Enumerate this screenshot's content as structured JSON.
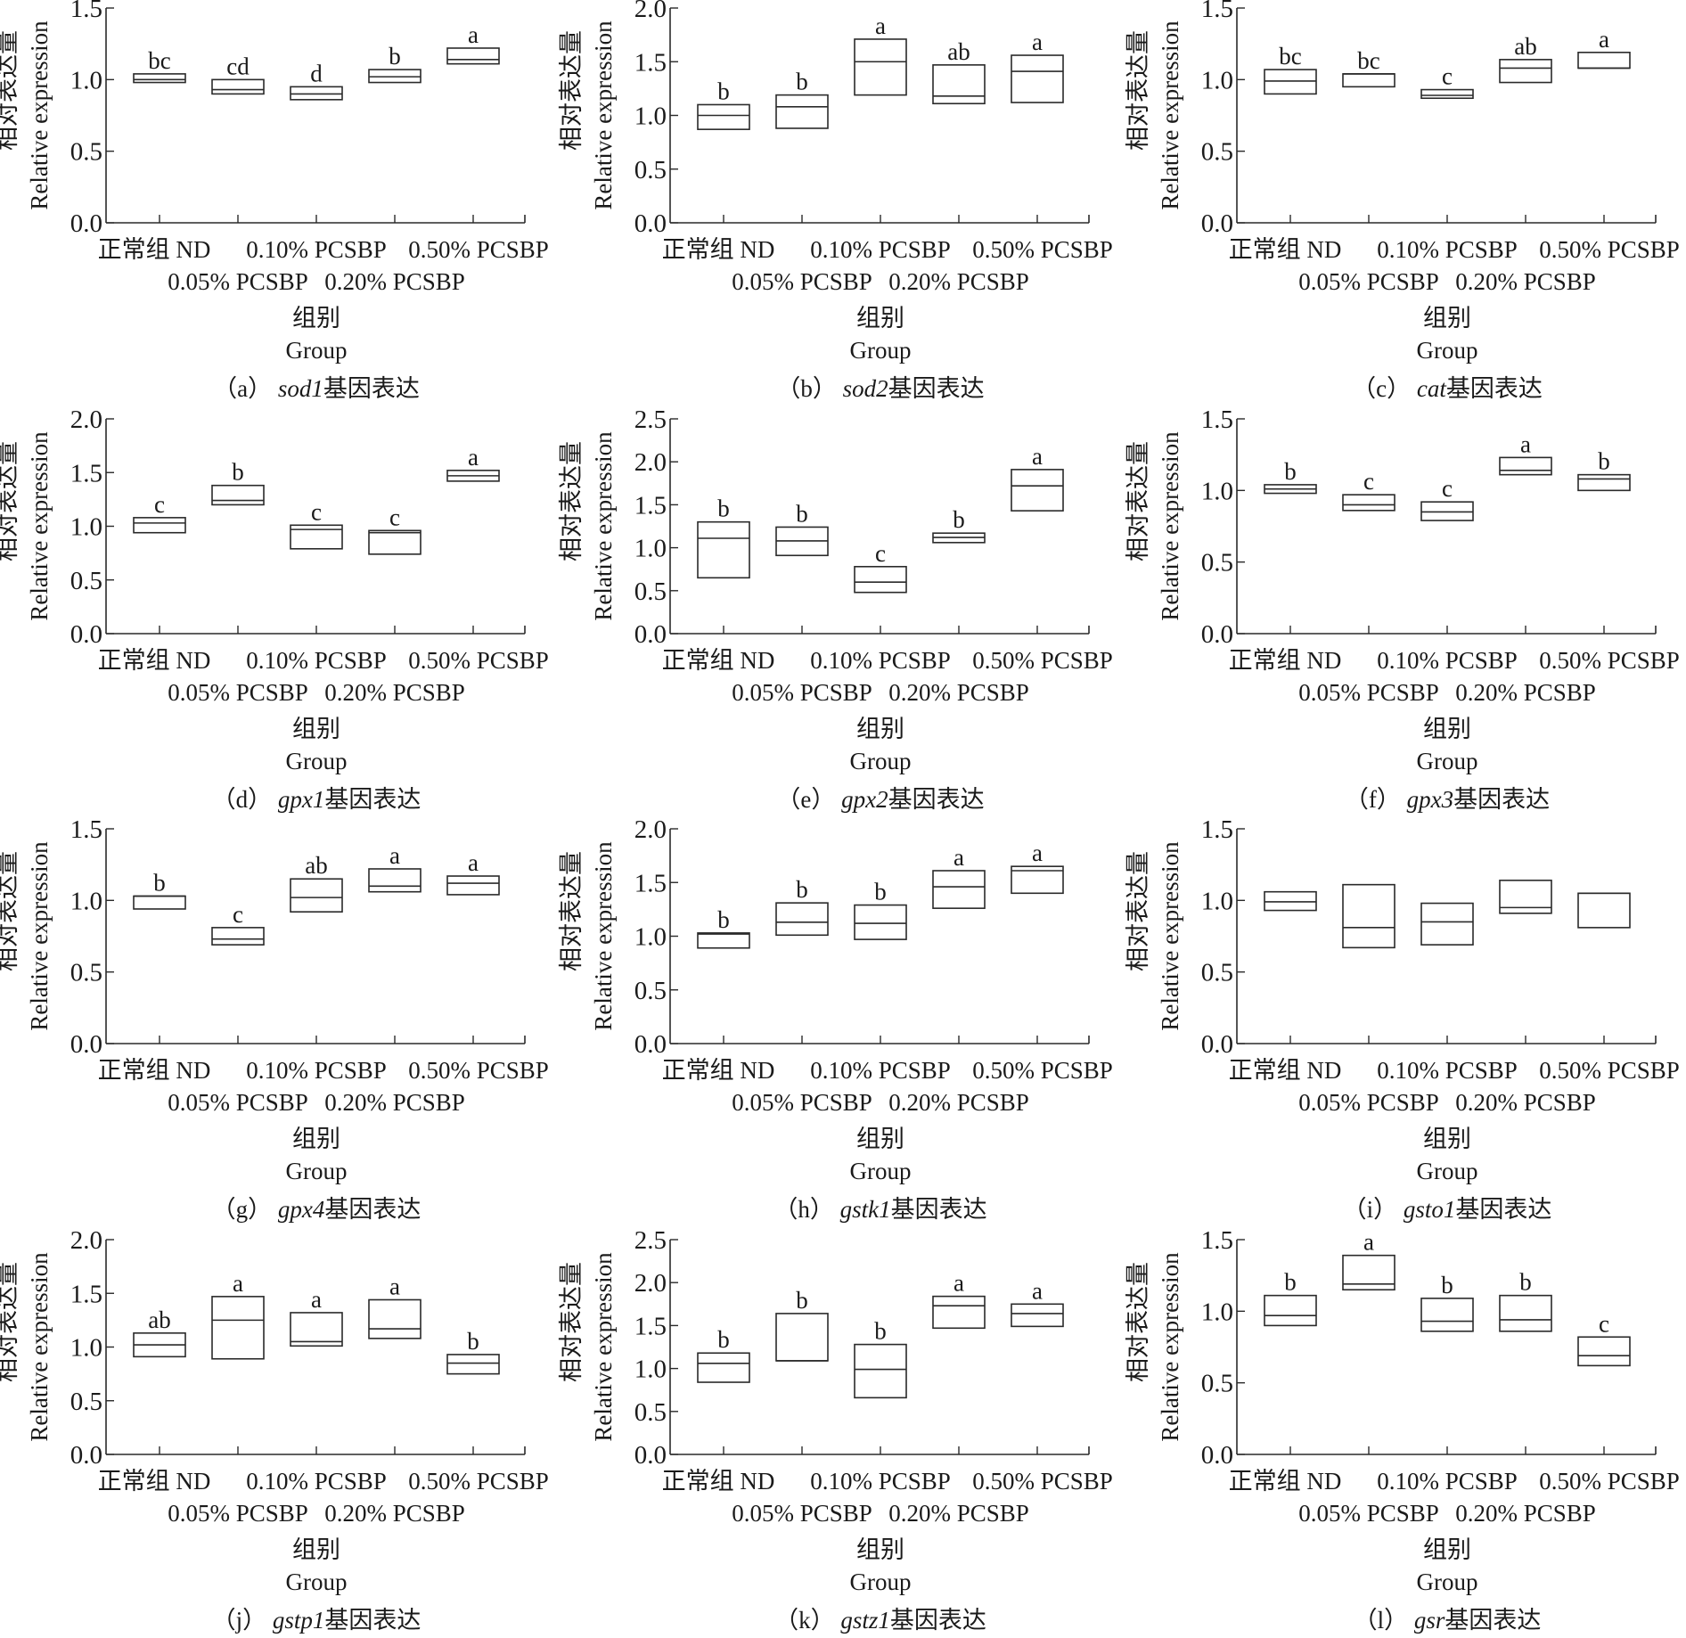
{
  "figure": {
    "y_label_cn": "相对表达量",
    "y_label_en": "Relative expression",
    "x_label_cn": "组别",
    "x_label_en": "Group",
    "caption_suffix": "基因表达",
    "categories": [
      "正常组 ND",
      "0.05% PCSBP",
      "0.10% PCSBP",
      "0.20% PCSBP",
      "0.50% PCSBP"
    ]
  },
  "chart_data": [
    {
      "type": "box",
      "panel": "a",
      "gene": "sod1",
      "title": "（a）sod1基因表达",
      "ylim": [
        0,
        1.5
      ],
      "yticks": [
        "0.0",
        "0.5",
        "1.0",
        "1.5"
      ],
      "boxes": [
        {
          "q1": 0.98,
          "median": 1.0,
          "q3": 1.04,
          "sig": "bc"
        },
        {
          "q1": 0.9,
          "median": 0.93,
          "q3": 1.0,
          "sig": "cd"
        },
        {
          "q1": 0.86,
          "median": 0.9,
          "q3": 0.95,
          "sig": "d"
        },
        {
          "q1": 0.98,
          "median": 1.02,
          "q3": 1.07,
          "sig": "b"
        },
        {
          "q1": 1.11,
          "median": 1.14,
          "q3": 1.22,
          "sig": "a"
        }
      ]
    },
    {
      "type": "box",
      "panel": "b",
      "gene": "sod2",
      "title": "（b）sod2基因表达",
      "ylim": [
        0,
        2.0
      ],
      "yticks": [
        "0.0",
        "0.5",
        "1.0",
        "1.5",
        "2.0"
      ],
      "boxes": [
        {
          "q1": 0.87,
          "median": 1.0,
          "q3": 1.1,
          "sig": "b"
        },
        {
          "q1": 0.88,
          "median": 1.08,
          "q3": 1.19,
          "sig": "b"
        },
        {
          "q1": 1.19,
          "median": 1.5,
          "q3": 1.71,
          "sig": "a"
        },
        {
          "q1": 1.11,
          "median": 1.18,
          "q3": 1.47,
          "sig": "ab"
        },
        {
          "q1": 1.12,
          "median": 1.41,
          "q3": 1.56,
          "sig": "a"
        }
      ]
    },
    {
      "type": "box",
      "panel": "c",
      "gene": "cat",
      "title": "（c）cat基因表达",
      "ylim": [
        0,
        1.5
      ],
      "yticks": [
        "0.0",
        "0.5",
        "1.0",
        "1.5"
      ],
      "boxes": [
        {
          "q1": 0.9,
          "median": 0.99,
          "q3": 1.07,
          "sig": "bc"
        },
        {
          "q1": 0.95,
          "median": 1.04,
          "q3": 1.04,
          "sig": "bc"
        },
        {
          "q1": 0.87,
          "median": 0.89,
          "q3": 0.93,
          "sig": "c"
        },
        {
          "q1": 0.98,
          "median": 1.08,
          "q3": 1.14,
          "sig": "ab"
        },
        {
          "q1": 1.08,
          "median": 1.08,
          "q3": 1.19,
          "sig": "a"
        }
      ]
    },
    {
      "type": "box",
      "panel": "d",
      "gene": "gpx1",
      "title": "（d）gpx1基因表达",
      "ylim": [
        0,
        2.0
      ],
      "yticks": [
        "0.0",
        "0.5",
        "1.0",
        "1.5",
        "2.0"
      ],
      "boxes": [
        {
          "q1": 0.94,
          "median": 1.03,
          "q3": 1.08,
          "sig": "c"
        },
        {
          "q1": 1.2,
          "median": 1.24,
          "q3": 1.38,
          "sig": "b"
        },
        {
          "q1": 0.79,
          "median": 0.97,
          "q3": 1.01,
          "sig": "c"
        },
        {
          "q1": 0.74,
          "median": 0.94,
          "q3": 0.96,
          "sig": "c"
        },
        {
          "q1": 1.42,
          "median": 1.47,
          "q3": 1.52,
          "sig": "a"
        }
      ]
    },
    {
      "type": "box",
      "panel": "e",
      "gene": "gpx2",
      "title": "（e）gpx2基因表达",
      "ylim": [
        0,
        2.5
      ],
      "yticks": [
        "0.0",
        "0.5",
        "1.0",
        "1.5",
        "2.0",
        "2.5"
      ],
      "boxes": [
        {
          "q1": 0.65,
          "median": 1.11,
          "q3": 1.3,
          "sig": "b"
        },
        {
          "q1": 0.91,
          "median": 1.08,
          "q3": 1.24,
          "sig": "b"
        },
        {
          "q1": 0.48,
          "median": 0.6,
          "q3": 0.78,
          "sig": "c"
        },
        {
          "q1": 1.06,
          "median": 1.12,
          "q3": 1.17,
          "sig": "b"
        },
        {
          "q1": 1.43,
          "median": 1.72,
          "q3": 1.91,
          "sig": "a"
        }
      ]
    },
    {
      "type": "box",
      "panel": "f",
      "gene": "gpx3",
      "title": "（f）gpx3基因表达",
      "ylim": [
        0,
        1.5
      ],
      "yticks": [
        "0.0",
        "0.5",
        "1.0",
        "1.5"
      ],
      "boxes": [
        {
          "q1": 0.98,
          "median": 1.01,
          "q3": 1.04,
          "sig": "b"
        },
        {
          "q1": 0.86,
          "median": 0.9,
          "q3": 0.97,
          "sig": "c"
        },
        {
          "q1": 0.79,
          "median": 0.85,
          "q3": 0.92,
          "sig": "c"
        },
        {
          "q1": 1.11,
          "median": 1.14,
          "q3": 1.23,
          "sig": "a"
        },
        {
          "q1": 1.0,
          "median": 1.08,
          "q3": 1.11,
          "sig": "b"
        }
      ]
    },
    {
      "type": "box",
      "panel": "g",
      "gene": "gpx4",
      "title": "（g）gpx4基因表达",
      "ylim": [
        0,
        1.5
      ],
      "yticks": [
        "0.0",
        "0.5",
        "1.0",
        "1.5"
      ],
      "boxes": [
        {
          "q1": 0.94,
          "median": 1.03,
          "q3": 1.03,
          "sig": "b"
        },
        {
          "q1": 0.69,
          "median": 0.73,
          "q3": 0.81,
          "sig": "c"
        },
        {
          "q1": 0.92,
          "median": 1.02,
          "q3": 1.15,
          "sig": "ab"
        },
        {
          "q1": 1.06,
          "median": 1.1,
          "q3": 1.22,
          "sig": "a"
        },
        {
          "q1": 1.04,
          "median": 1.12,
          "q3": 1.17,
          "sig": "a"
        }
      ]
    },
    {
      "type": "box",
      "panel": "h",
      "gene": "gstk1",
      "title": "（h）gstk1基因表达",
      "ylim": [
        0,
        2.0
      ],
      "yticks": [
        "0.0",
        "0.5",
        "1.0",
        "1.5",
        "2.0"
      ],
      "boxes": [
        {
          "q1": 0.89,
          "median": 1.02,
          "q3": 1.03,
          "sig": "b"
        },
        {
          "q1": 1.01,
          "median": 1.13,
          "q3": 1.31,
          "sig": "b"
        },
        {
          "q1": 0.97,
          "median": 1.12,
          "q3": 1.29,
          "sig": "b"
        },
        {
          "q1": 1.26,
          "median": 1.46,
          "q3": 1.61,
          "sig": "a"
        },
        {
          "q1": 1.4,
          "median": 1.61,
          "q3": 1.65,
          "sig": "a"
        }
      ]
    },
    {
      "type": "box",
      "panel": "i",
      "gene": "gsto1",
      "title": "（i）gsto1基因表达",
      "ylim": [
        0,
        1.5
      ],
      "yticks": [
        "0.0",
        "0.5",
        "1.0",
        "1.5"
      ],
      "boxes": [
        {
          "q1": 0.93,
          "median": 0.99,
          "q3": 1.06,
          "sig": ""
        },
        {
          "q1": 0.67,
          "median": 0.81,
          "q3": 1.11,
          "sig": ""
        },
        {
          "q1": 0.69,
          "median": 0.85,
          "q3": 0.98,
          "sig": ""
        },
        {
          "q1": 0.91,
          "median": 0.95,
          "q3": 1.14,
          "sig": ""
        },
        {
          "q1": 0.81,
          "median": 1.05,
          "q3": 1.05,
          "sig": ""
        }
      ]
    },
    {
      "type": "box",
      "panel": "j",
      "gene": "gstp1",
      "title": "（j）gstp1基因表达",
      "ylim": [
        0,
        2.0
      ],
      "yticks": [
        "0.0",
        "0.5",
        "1.0",
        "1.5",
        "2.0"
      ],
      "boxes": [
        {
          "q1": 0.91,
          "median": 1.02,
          "q3": 1.13,
          "sig": "ab"
        },
        {
          "q1": 0.89,
          "median": 1.25,
          "q3": 1.47,
          "sig": "a"
        },
        {
          "q1": 1.01,
          "median": 1.05,
          "q3": 1.32,
          "sig": "a"
        },
        {
          "q1": 1.08,
          "median": 1.17,
          "q3": 1.44,
          "sig": "a"
        },
        {
          "q1": 0.75,
          "median": 0.85,
          "q3": 0.93,
          "sig": "b"
        }
      ]
    },
    {
      "type": "box",
      "panel": "k",
      "gene": "gstz1",
      "title": "（k）gstz1基因表达",
      "ylim": [
        0,
        2.5
      ],
      "yticks": [
        "0.0",
        "0.5",
        "1.0",
        "1.5",
        "2.0",
        "2.5"
      ],
      "boxes": [
        {
          "q1": 0.84,
          "median": 1.06,
          "q3": 1.18,
          "sig": "b"
        },
        {
          "q1": 1.09,
          "median": 1.09,
          "q3": 1.64,
          "sig": "b"
        },
        {
          "q1": 0.66,
          "median": 0.99,
          "q3": 1.28,
          "sig": "b"
        },
        {
          "q1": 1.47,
          "median": 1.73,
          "q3": 1.84,
          "sig": "a"
        },
        {
          "q1": 1.49,
          "median": 1.64,
          "q3": 1.75,
          "sig": "a"
        }
      ]
    },
    {
      "type": "box",
      "panel": "l",
      "gene": "gsr",
      "title": "（l）gsr基因表达",
      "ylim": [
        0,
        1.5
      ],
      "yticks": [
        "0.0",
        "0.5",
        "1.0",
        "1.5"
      ],
      "boxes": [
        {
          "q1": 0.9,
          "median": 0.97,
          "q3": 1.11,
          "sig": "b"
        },
        {
          "q1": 1.15,
          "median": 1.19,
          "q3": 1.39,
          "sig": "a"
        },
        {
          "q1": 0.86,
          "median": 0.93,
          "q3": 1.09,
          "sig": "b"
        },
        {
          "q1": 0.86,
          "median": 0.94,
          "q3": 1.11,
          "sig": "b"
        },
        {
          "q1": 0.62,
          "median": 0.69,
          "q3": 0.82,
          "sig": "c"
        }
      ]
    }
  ]
}
